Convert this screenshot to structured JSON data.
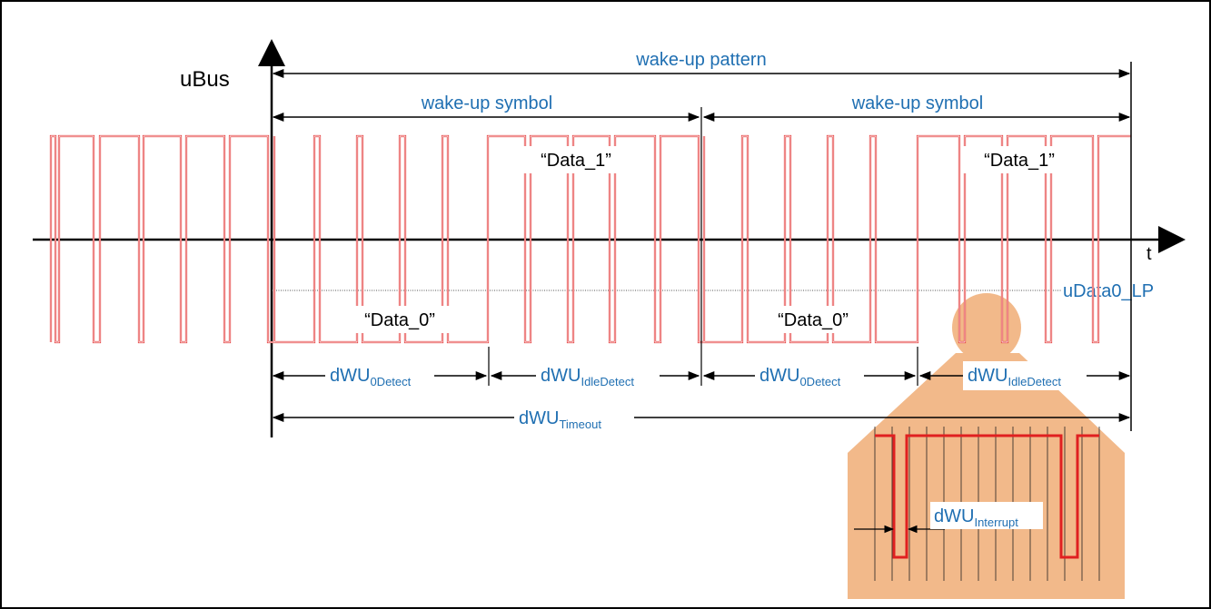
{
  "diagram": {
    "axis_y_label": "uBus",
    "axis_x_label": "t",
    "pattern_label": "wake-up pattern",
    "symbol_labels": [
      "wake-up symbol",
      "wake-up symbol"
    ],
    "data1_labels": [
      "“Data_1”",
      "“Data_1”"
    ],
    "data0_labels": [
      "“Data_0”",
      "“Data_0”"
    ],
    "level_label": "uData0_LP",
    "timing": [
      {
        "main": "dWU",
        "sub": "0Detect"
      },
      {
        "main": "dWU",
        "sub": "IdleDetect"
      },
      {
        "main": "dWU",
        "sub": "0Detect"
      },
      {
        "main": "dWU",
        "sub": "IdleDetect"
      }
    ],
    "timeout": {
      "main": "dWU",
      "sub": "Timeout"
    },
    "interrupt": {
      "main": "dWU",
      "sub": "Interrupt"
    },
    "colors": {
      "signal": "#e02020",
      "label": "#1f6fb2",
      "zoom_fill": "#f2b98a",
      "axis": "#000000"
    }
  }
}
